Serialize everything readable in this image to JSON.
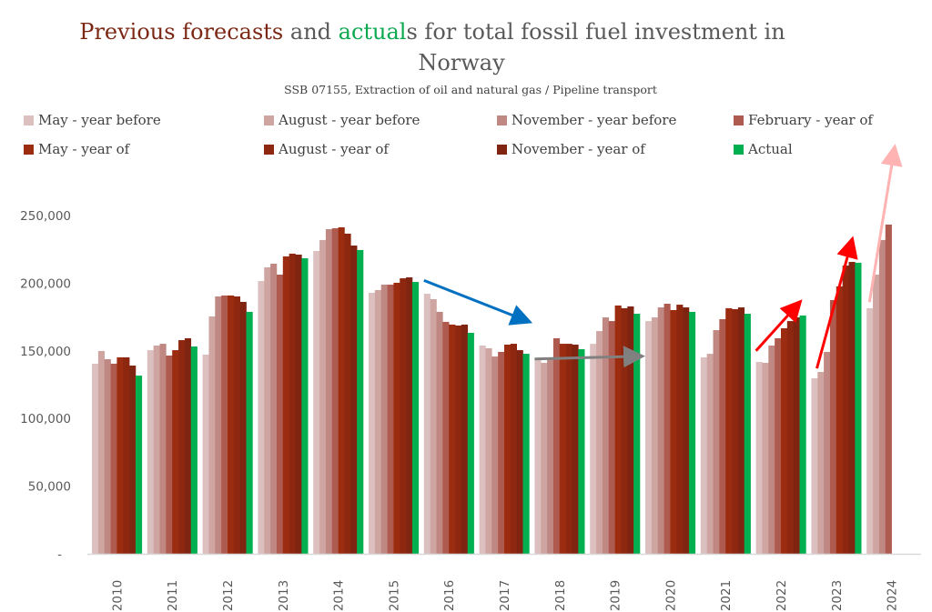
{
  "title": {
    "part1_highlight": "Previous forecasts",
    "part2": " and ",
    "part3_highlight": "actual",
    "part4": "s for total fossil fuel investment in",
    "line2": "Norway",
    "subtitle": "SSB 07155, Extraction of oil and natural gas / Pipeline transport"
  },
  "colors": {
    "title_forecast": "#7b2714",
    "title_actual": "#0aa84f",
    "axis_line": "#d9d9d9"
  },
  "chart_data": {
    "type": "bar",
    "title": "Previous forecasts and actuals for total fossil fuel investment in Norway",
    "subtitle": "SSB 07155, Extraction of oil and natural gas / Pipeline transport",
    "xlabel": "",
    "ylabel": "",
    "ylim": [
      0,
      250000
    ],
    "yticks": [
      0,
      50000,
      100000,
      150000,
      200000,
      250000
    ],
    "ytick_labels": [
      "-",
      "50,000",
      "100,000",
      "150,000",
      "200,000",
      "250,000"
    ],
    "grid": false,
    "legend_position": "top",
    "categories": [
      "2010",
      "2011",
      "2012",
      "2013",
      "2014",
      "2015",
      "2016",
      "2017",
      "2018",
      "2019",
      "2020",
      "2021",
      "2022",
      "2023",
      "2024"
    ],
    "series": [
      {
        "name": "May - year before",
        "color": "#dcc0bf",
        "values": [
          140500,
          150500,
          147200,
          201600,
          223800,
          192900,
          192200,
          153900,
          143800,
          155200,
          172000,
          145200,
          141800,
          129700,
          181500
        ]
      },
      {
        "name": "August - year before",
        "color": "#cfa5a1",
        "values": [
          149900,
          153900,
          175400,
          211700,
          231900,
          194900,
          188200,
          151900,
          141100,
          164600,
          174700,
          147800,
          141100,
          134400,
          206300
        ]
      },
      {
        "name": "November - year before",
        "color": "#c08882",
        "values": [
          143800,
          155200,
          190200,
          214400,
          239900,
          198900,
          178800,
          145800,
          143800,
          174700,
          182100,
          165300,
          153900,
          149200,
          231900
        ]
      },
      {
        "name": "February - year of",
        "color": "#ae5a4f",
        "values": [
          140500,
          146500,
          190900,
          206300,
          240600,
          198900,
          171400,
          149200,
          159300,
          172000,
          184800,
          173400,
          159300,
          187500,
          243300
        ]
      },
      {
        "name": "May - year of",
        "color": "#9c2c10",
        "values": [
          145200,
          150500,
          190900,
          219800,
          241300,
          200300,
          169400,
          154600,
          155200,
          183500,
          180100,
          181500,
          166700,
          197600,
          null
        ]
      },
      {
        "name": "August - year of",
        "color": "#8e2710",
        "values": [
          145200,
          157900,
          190200,
          221800,
          236600,
          203600,
          168700,
          155200,
          155200,
          181500,
          184100,
          180800,
          172000,
          213000,
          null
        ]
      },
      {
        "name": "November - year of",
        "color": "#7e2410",
        "values": [
          139100,
          159300,
          186200,
          221100,
          227800,
          204300,
          169400,
          150500,
          154600,
          182800,
          182100,
          182100,
          174700,
          215700,
          null
        ]
      },
      {
        "name": "Actual",
        "color": "#00b050",
        "values": [
          131700,
          153200,
          178800,
          218400,
          224500,
          200900,
          163300,
          147800,
          151200,
          177400,
          178800,
          177400,
          176100,
          215100,
          null
        ]
      }
    ],
    "annotations": [
      {
        "type": "arrow",
        "color": "#0070c0",
        "meaning": "downward trend",
        "from_category": "2016",
        "to_category": "2017",
        "from_value": 202000,
        "to_value": 172000
      },
      {
        "type": "arrow",
        "color": "#808080",
        "meaning": "flat trend",
        "from_category": "2018",
        "to_category": "2019",
        "from_value": 144000,
        "to_value": 146000
      },
      {
        "type": "arrow",
        "color": "#ff0000",
        "meaning": "upward trend",
        "from_category": "2022",
        "to_category": "2022",
        "from_value": 150000,
        "to_value": 185000
      },
      {
        "type": "arrow",
        "color": "#ff0000",
        "meaning": "upward trend",
        "from_category": "2023",
        "to_category": "2023",
        "from_value": 137000,
        "to_value": 231000
      },
      {
        "type": "arrow",
        "color": "#ffb3b3",
        "meaning": "upward trend",
        "from_category": "2024",
        "to_category": "2024",
        "from_value": 186000,
        "to_value": 299000
      }
    ]
  }
}
